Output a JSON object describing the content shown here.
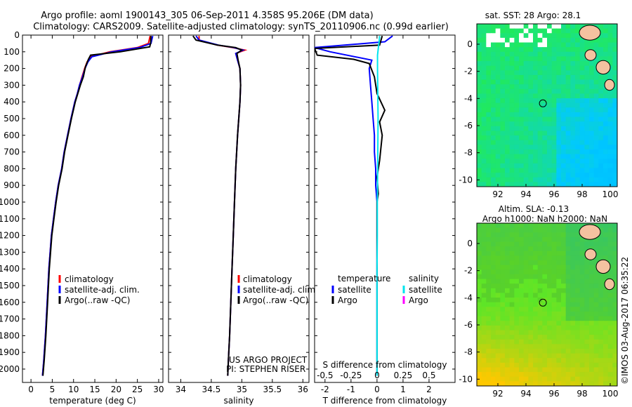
{
  "title": {
    "line1": "Argo profile: aoml 1900143_305 06-Sep-2011 4.358S 95.206E (DM data)",
    "line2": "Climatology: CARS2009. Satellite-adjusted climatology: synTS_20110906.nc (0.99d earlier)"
  },
  "colors": {
    "climatology": "#ff0000",
    "satellite": "#0000ff",
    "argo": "#000000",
    "sal_satellite": "#00e5ee",
    "sal_argo": "#ff00ff"
  },
  "chart_data": [
    {
      "type": "line",
      "id": "temperature",
      "xlabel": "temperature (deg C)",
      "ylabel": "",
      "xlim": [
        -2,
        31
      ],
      "ylim": [
        2080,
        0
      ],
      "xticks": [
        0,
        5,
        10,
        15,
        20,
        25,
        30
      ],
      "yticks": [
        0,
        100,
        200,
        300,
        400,
        500,
        600,
        700,
        800,
        900,
        1000,
        1100,
        1200,
        1300,
        1400,
        1500,
        1600,
        1700,
        1800,
        1900,
        2000
      ],
      "legend": [
        "climatology",
        "satellite-adj. clim.",
        "Argo(..raw -QC)"
      ],
      "series": [
        {
          "name": "climatology",
          "color": "#ff0000",
          "x": [
            28.0,
            27.6,
            25.0,
            18.5,
            14.0,
            13.2,
            12.6,
            12.0,
            11.4,
            10.9,
            10.3,
            9.4,
            8.6,
            7.8,
            7.2,
            6.4,
            5.8,
            5.3,
            4.8,
            4.2,
            3.8,
            3.4,
            3.0,
            2.7
          ],
          "y": [
            5,
            50,
            75,
            100,
            130,
            160,
            200,
            250,
            300,
            350,
            400,
            500,
            600,
            700,
            800,
            900,
            1000,
            1100,
            1200,
            1400,
            1600,
            1800,
            1950,
            2040
          ]
        },
        {
          "name": "satellite-adj. clim.",
          "color": "#0000ff",
          "x": [
            28.6,
            28.2,
            25.5,
            19.0,
            14.3,
            13.4,
            12.7,
            12.1,
            11.4,
            10.9,
            10.3,
            9.4,
            8.6,
            7.8,
            7.2,
            6.4,
            5.8,
            5.3,
            4.8,
            4.2,
            3.8,
            3.4,
            3.0,
            2.7
          ],
          "y": [
            5,
            50,
            75,
            100,
            130,
            160,
            200,
            250,
            300,
            350,
            400,
            500,
            600,
            700,
            800,
            900,
            1000,
            1100,
            1200,
            1400,
            1600,
            1800,
            1950,
            2040
          ]
        },
        {
          "name": "Argo(..raw -QC)",
          "color": "#000000",
          "x": [
            28.2,
            28.1,
            27.9,
            21.0,
            14.0,
            13.5,
            12.8,
            12.3,
            11.6,
            11.0,
            10.4,
            9.5,
            8.7,
            7.9,
            7.3,
            6.5,
            5.9,
            5.4,
            4.9,
            4.3,
            3.9,
            3.5,
            3.1,
            2.8
          ],
          "y": [
            5,
            50,
            70,
            100,
            120,
            145,
            190,
            250,
            300,
            350,
            400,
            500,
            600,
            700,
            800,
            900,
            1000,
            1100,
            1200,
            1400,
            1600,
            1800,
            1950,
            2040
          ]
        }
      ]
    },
    {
      "type": "line",
      "id": "salinity",
      "xlabel": "salinity",
      "xlim": [
        33.8,
        36.1
      ],
      "ylim": [
        2080,
        0
      ],
      "xticks": [
        34,
        34.5,
        35,
        35.5,
        36
      ],
      "legend": [
        "climatology",
        "satellite-adj. clim.",
        "Argo(..raw -QC)"
      ],
      "annotation": [
        "US ARGO PROJECT",
        "PI: STEPHEN RISER"
      ],
      "series": [
        {
          "name": "climatology",
          "color": "#ff0000",
          "x": [
            34.3,
            34.3,
            34.6,
            34.85,
            35.05,
            34.9,
            34.93,
            34.97,
            34.98,
            34.97,
            34.95,
            34.93,
            34.9,
            34.88,
            34.86,
            34.84,
            34.82,
            34.8,
            34.78,
            34.77
          ],
          "y": [
            5,
            30,
            60,
            75,
            90,
            110,
            150,
            200,
            300,
            400,
            500,
            600,
            800,
            1000,
            1200,
            1400,
            1600,
            1800,
            1950,
            2040
          ]
        },
        {
          "name": "satellite-adj. clim.",
          "color": "#0000ff",
          "x": [
            34.25,
            34.3,
            34.62,
            34.87,
            35.02,
            34.9,
            34.93,
            34.97,
            34.98,
            34.97,
            34.95,
            34.93,
            34.9,
            34.88,
            34.86,
            34.84,
            34.82,
            34.8,
            34.78,
            34.77
          ],
          "y": [
            5,
            30,
            60,
            75,
            90,
            110,
            150,
            200,
            300,
            400,
            500,
            600,
            800,
            1000,
            1200,
            1400,
            1600,
            1800,
            1950,
            2040
          ]
        },
        {
          "name": "Argo(..raw -QC)",
          "color": "#000000",
          "x": [
            34.2,
            34.25,
            34.6,
            34.9,
            35.0,
            34.92,
            34.94,
            34.97,
            34.98,
            34.97,
            34.95,
            34.93,
            34.9,
            34.88,
            34.86,
            34.84,
            34.82,
            34.8,
            34.78,
            34.77
          ],
          "y": [
            5,
            30,
            60,
            75,
            90,
            110,
            150,
            200,
            300,
            400,
            500,
            600,
            800,
            1000,
            1200,
            1400,
            1600,
            1800,
            1950,
            2040
          ]
        }
      ]
    },
    {
      "type": "line",
      "id": "difference",
      "xlabel": "T difference from climatology",
      "xlabel_top": "S difference from climatology",
      "xlim": [
        -2.4,
        3.0
      ],
      "ylim": [
        2080,
        0
      ],
      "xticks": [
        -2,
        -1,
        0,
        1,
        2
      ],
      "xticks_top": [
        -0.5,
        -0.25,
        0,
        0.25,
        0.5
      ],
      "legend_headers": [
        "temperature",
        "salinity"
      ],
      "legend_left": [
        "satellite",
        "Argo"
      ],
      "legend_right": [
        "satellite",
        "Argo"
      ],
      "series": [
        {
          "name": "T satellite",
          "color": "#0000ff",
          "x": [
            0.6,
            0.3,
            -2.4,
            -1.8,
            -0.2,
            -0.3,
            -0.25,
            -0.2,
            -0.15,
            -0.1,
            -0.1,
            -0.05,
            -0.05,
            0,
            0,
            0,
            0,
            0,
            0
          ],
          "y": [
            5,
            40,
            75,
            100,
            150,
            200,
            300,
            400,
            500,
            600,
            700,
            800,
            900,
            1000,
            1200,
            1400,
            1600,
            1800,
            2040
          ]
        },
        {
          "name": "T Argo",
          "color": "#000000",
          "x": [
            0.2,
            0.1,
            -2.4,
            -2.3,
            -0.9,
            -0.3,
            -0.1,
            0.0,
            0.3,
            0.1,
            0.2,
            0.1,
            0.0,
            0.05,
            0.0,
            0.0,
            0.0,
            0.0,
            0.0,
            0.0
          ],
          "y": [
            5,
            60,
            80,
            120,
            145,
            170,
            250,
            350,
            450,
            520,
            600,
            750,
            850,
            950,
            1000,
            1200,
            1400,
            1600,
            1800,
            2040
          ]
        },
        {
          "name": "S satellite",
          "color": "#00e5ee",
          "x": [
            0.1,
            0.08,
            0.05,
            0.02,
            0.02,
            0.03,
            0.04,
            0.03,
            0.02,
            0.01,
            0.01,
            0.0,
            0.0,
            0.0,
            0.0,
            0.0
          ],
          "y": [
            5,
            40,
            80,
            120,
            200,
            350,
            500,
            700,
            900,
            1000,
            1200,
            1400,
            1600,
            1800,
            1950,
            2040
          ]
        }
      ]
    },
    {
      "type": "heatmap",
      "id": "sst_map",
      "title": "sat. SST: 28  Argo: 28.1",
      "xlim": [
        90.5,
        100.5
      ],
      "ylim": [
        -10.5,
        1.5
      ],
      "xticks": [
        92,
        94,
        96,
        98,
        100
      ],
      "yticks": [
        0,
        -2,
        -4,
        -6,
        -8,
        -10
      ],
      "marker": {
        "lon": 95.206,
        "lat": -4.358
      }
    },
    {
      "type": "heatmap",
      "id": "sla_map",
      "title": "Altim. SLA: -0.13",
      "subtitle": "Argo h1000: NaN h2000: NaN",
      "xlim": [
        90.5,
        100.5
      ],
      "ylim": [
        -10.5,
        1.5
      ],
      "xticks": [
        92,
        94,
        96,
        98,
        100
      ],
      "yticks": [
        0,
        -2,
        -4,
        -6,
        -8,
        -10
      ],
      "marker": {
        "lon": 95.206,
        "lat": -4.358
      }
    }
  ],
  "credit": "©IMOS 03-Aug-2017 06:35:22"
}
